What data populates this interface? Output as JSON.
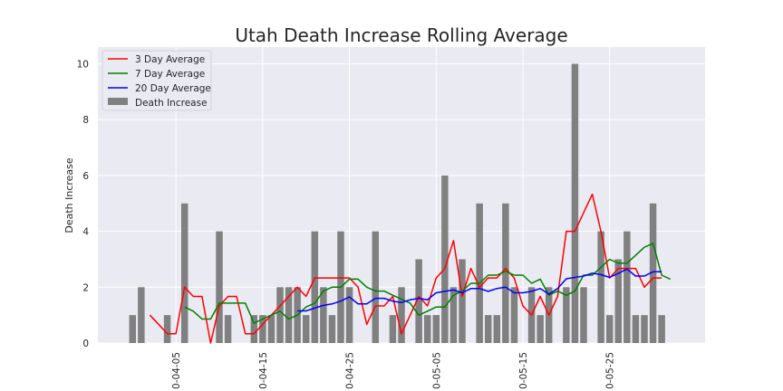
{
  "chart_data": {
    "type": "bar",
    "title": "Utah Death Increase Rolling Average",
    "xlabel": "",
    "ylabel": "Death Increase",
    "ylim": [
      0,
      10.6
    ],
    "yticks": [
      0,
      2,
      4,
      6,
      8,
      10
    ],
    "x_tick_labels": [
      "0-04-05",
      "0-04-15",
      "0-04-25",
      "0-05-05",
      "0-05-15",
      "0-05-25"
    ],
    "x_tick_dates": [
      "2020-04-05",
      "2020-04-15",
      "2020-04-25",
      "2020-05-05",
      "2020-05-15",
      "2020-05-25"
    ],
    "x_range": [
      "2020-03-27",
      "2020-06-05"
    ],
    "grid": true,
    "legend_position": "top-left",
    "dates": [
      "2020-03-31",
      "2020-04-01",
      "2020-04-02",
      "2020-04-03",
      "2020-04-04",
      "2020-04-05",
      "2020-04-06",
      "2020-04-07",
      "2020-04-08",
      "2020-04-09",
      "2020-04-10",
      "2020-04-11",
      "2020-04-12",
      "2020-04-13",
      "2020-04-14",
      "2020-04-15",
      "2020-04-16",
      "2020-04-17",
      "2020-04-18",
      "2020-04-19",
      "2020-04-20",
      "2020-04-21",
      "2020-04-22",
      "2020-04-23",
      "2020-04-24",
      "2020-04-25",
      "2020-04-26",
      "2020-04-27",
      "2020-04-28",
      "2020-04-29",
      "2020-04-30",
      "2020-05-01",
      "2020-05-02",
      "2020-05-03",
      "2020-05-04",
      "2020-05-05",
      "2020-05-06",
      "2020-05-07",
      "2020-05-08",
      "2020-05-09",
      "2020-05-10",
      "2020-05-11",
      "2020-05-12",
      "2020-05-13",
      "2020-05-14",
      "2020-05-15",
      "2020-05-16",
      "2020-05-17",
      "2020-05-18",
      "2020-05-19",
      "2020-05-20",
      "2020-05-21",
      "2020-05-22",
      "2020-05-23",
      "2020-05-24",
      "2020-05-25",
      "2020-05-26",
      "2020-05-27",
      "2020-05-28",
      "2020-05-29",
      "2020-05-30",
      "2020-05-31",
      "2020-06-01"
    ],
    "series": [
      {
        "name": "Death Increase",
        "kind": "bar",
        "color": "#808080",
        "values": [
          1,
          2,
          0,
          0,
          1,
          0,
          5,
          0,
          0,
          0,
          4,
          1,
          0,
          0,
          1,
          1,
          1,
          2,
          2,
          2,
          1,
          4,
          2,
          1,
          4,
          2,
          0,
          0,
          4,
          0,
          1,
          2,
          0,
          3,
          1,
          1,
          6,
          2,
          3,
          0,
          5,
          1,
          1,
          5,
          2,
          0,
          2,
          1,
          2,
          0,
          2,
          10,
          2,
          0,
          4,
          1,
          3,
          4,
          1,
          1,
          5,
          1,
          0
        ]
      },
      {
        "name": "3 Day Average",
        "kind": "line",
        "color": "#ff0000",
        "values": [
          null,
          null,
          1.0,
          0.67,
          0.33,
          0.33,
          2.0,
          1.67,
          1.67,
          0,
          1.33,
          1.67,
          1.67,
          0.33,
          0.33,
          0.67,
          1.0,
          1.33,
          1.67,
          2.0,
          1.67,
          2.33,
          2.33,
          2.33,
          2.33,
          2.33,
          2.0,
          0.67,
          1.33,
          1.33,
          1.67,
          0.33,
          1.0,
          1.67,
          1.33,
          2.33,
          2.67,
          3.67,
          1.67,
          2.67,
          2.0,
          2.33,
          2.33,
          2.67,
          2.33,
          1.33,
          1.0,
          1.67,
          1.0,
          1.67,
          4.0,
          4.0,
          4.67,
          5.33,
          4.0,
          2.33,
          2.67,
          2.67,
          2.67,
          2.0,
          2.33,
          2.33,
          null
        ]
      },
      {
        "name": "7 Day Average",
        "kind": "line",
        "color": "#008000",
        "values": [
          null,
          null,
          null,
          null,
          null,
          null,
          1.29,
          1.14,
          0.86,
          0.86,
          1.43,
          1.43,
          1.43,
          1.43,
          0.71,
          0.86,
          1.0,
          1.14,
          0.86,
          1.0,
          1.29,
          1.43,
          1.86,
          2.0,
          2.0,
          2.29,
          2.29,
          2.0,
          1.86,
          1.86,
          1.71,
          1.57,
          1.43,
          1.0,
          1.14,
          1.29,
          1.29,
          1.71,
          1.86,
          2.14,
          2.14,
          2.43,
          2.43,
          2.57,
          2.43,
          2.43,
          2.14,
          2.29,
          1.71,
          1.86,
          1.71,
          1.86,
          2.43,
          2.43,
          2.71,
          3.0,
          2.86,
          2.86,
          3.14,
          3.43,
          3.57,
          2.43,
          2.29
        ]
      },
      {
        "name": "20 Day Average",
        "kind": "line",
        "color": "#0000ff",
        "values": [
          null,
          null,
          null,
          null,
          null,
          null,
          null,
          null,
          null,
          null,
          null,
          null,
          null,
          null,
          null,
          null,
          null,
          null,
          null,
          1.15,
          1.15,
          1.25,
          1.35,
          1.4,
          1.5,
          1.65,
          1.4,
          1.4,
          1.6,
          1.6,
          1.5,
          1.45,
          1.55,
          1.6,
          1.55,
          1.8,
          1.85,
          1.9,
          1.8,
          1.95,
          1.95,
          1.85,
          1.95,
          2.0,
          1.8,
          1.8,
          1.85,
          1.95,
          1.75,
          1.95,
          2.3,
          2.35,
          2.4,
          2.5,
          2.45,
          2.35,
          2.5,
          2.65,
          2.4,
          2.4,
          2.55,
          2.55,
          null
        ]
      }
    ]
  }
}
